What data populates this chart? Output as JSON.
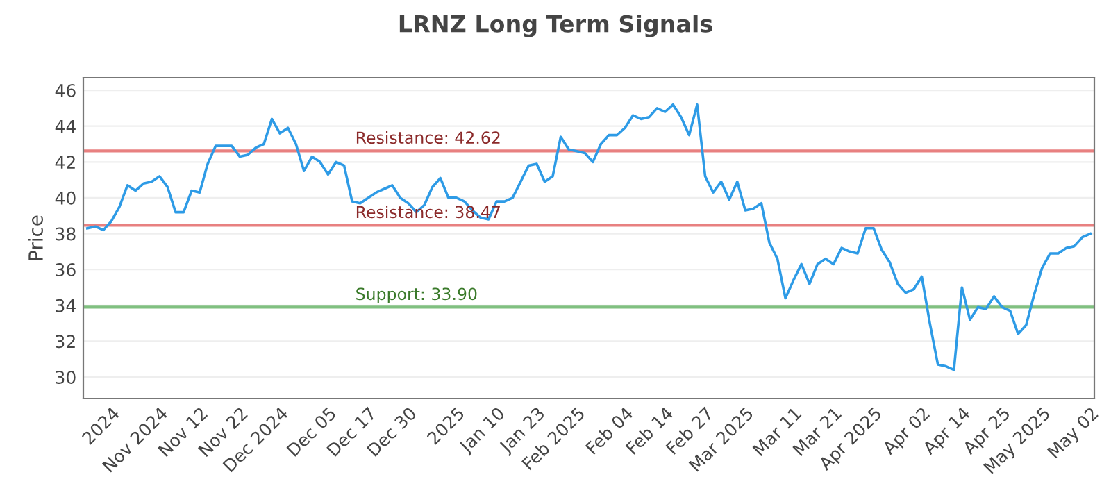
{
  "chart_data": {
    "type": "line",
    "title": "LRNZ Long Term Signals",
    "ylabel": "Price",
    "categories": [
      null,
      null,
      null,
      "2024",
      null,
      null,
      null,
      null,
      null,
      "Nov 2024",
      null,
      null,
      null,
      null,
      "Nov 12",
      null,
      null,
      null,
      null,
      "Nov 22",
      null,
      null,
      null,
      null,
      "Dec 2024",
      null,
      null,
      null,
      null,
      null,
      "Dec 05",
      null,
      null,
      null,
      null,
      "Dec 17",
      null,
      null,
      null,
      null,
      "Dec 30",
      null,
      null,
      null,
      null,
      null,
      "2025",
      null,
      null,
      null,
      null,
      "Jan 10",
      null,
      null,
      null,
      null,
      "Jan 23",
      null,
      null,
      null,
      null,
      "Feb 2025",
      null,
      null,
      null,
      null,
      null,
      "Feb 04",
      null,
      null,
      null,
      null,
      "Feb 14",
      null,
      null,
      null,
      null,
      "Feb 27",
      null,
      null,
      null,
      null,
      "Mar 2025",
      null,
      null,
      null,
      null,
      null,
      "Mar 11",
      null,
      null,
      null,
      null,
      "Mar 21",
      null,
      null,
      null,
      null,
      "Apr 2025",
      null,
      null,
      null,
      null,
      null,
      "Apr 02",
      null,
      null,
      null,
      null,
      "Apr 14",
      null,
      null,
      null,
      null,
      "Apr 25",
      null,
      null,
      null,
      null,
      "May 2025",
      null,
      null,
      null,
      null,
      null,
      "May 02"
    ],
    "series": [
      {
        "color": "#2e9be6",
        "values": [
          38.3,
          38.4,
          38.2,
          38.7,
          39.5,
          40.7,
          40.4,
          40.8,
          40.9,
          41.2,
          40.6,
          39.2,
          39.2,
          40.4,
          40.3,
          41.9,
          42.9,
          42.9,
          42.9,
          42.3,
          42.4,
          42.8,
          43.0,
          44.4,
          43.6,
          43.9,
          43.0,
          41.5,
          42.3,
          42.0,
          41.3,
          42.0,
          41.8,
          39.8,
          39.7,
          40.0,
          40.3,
          40.5,
          40.7,
          40.0,
          39.7,
          39.2,
          39.6,
          40.6,
          41.1,
          40.0,
          40.0,
          39.8,
          39.3,
          38.9,
          38.8,
          39.8,
          39.8,
          40.0,
          40.9,
          41.8,
          41.9,
          40.9,
          41.2,
          43.4,
          42.7,
          42.6,
          42.5,
          42.0,
          43.0,
          43.5,
          43.5,
          43.9,
          44.6,
          44.4,
          44.5,
          45.0,
          44.8,
          45.2,
          44.5,
          43.5,
          45.2,
          41.2,
          40.3,
          40.9,
          39.9,
          40.9,
          39.3,
          39.4,
          39.7,
          37.5,
          36.6,
          34.4,
          35.4,
          36.3,
          35.2,
          36.3,
          36.6,
          36.3,
          37.2,
          37.0,
          36.9,
          38.3,
          38.3,
          37.1,
          36.4,
          35.2,
          34.7,
          34.9,
          35.6,
          33.0,
          30.7,
          30.6,
          30.4,
          35.0,
          33.2,
          33.9,
          33.8,
          34.5,
          33.9,
          33.7,
          32.4,
          32.9,
          34.6,
          36.1,
          36.9,
          36.9,
          37.2,
          37.3,
          37.8,
          38.0
        ]
      }
    ],
    "ylim": [
      28.8,
      46.7
    ],
    "yticks": [
      30,
      32,
      34,
      36,
      38,
      40,
      42,
      44,
      46
    ],
    "grid": "y",
    "ref_lines": [
      {
        "axis": "y",
        "value": 42.62,
        "label": "Resistance: 42.62",
        "color": "#e88080"
      },
      {
        "axis": "y",
        "value": 38.47,
        "label": "Resistance: 38.47",
        "color": "#e88080"
      },
      {
        "axis": "y",
        "value": 33.9,
        "label": "Support: 33.90",
        "color": "#80c080"
      }
    ]
  }
}
